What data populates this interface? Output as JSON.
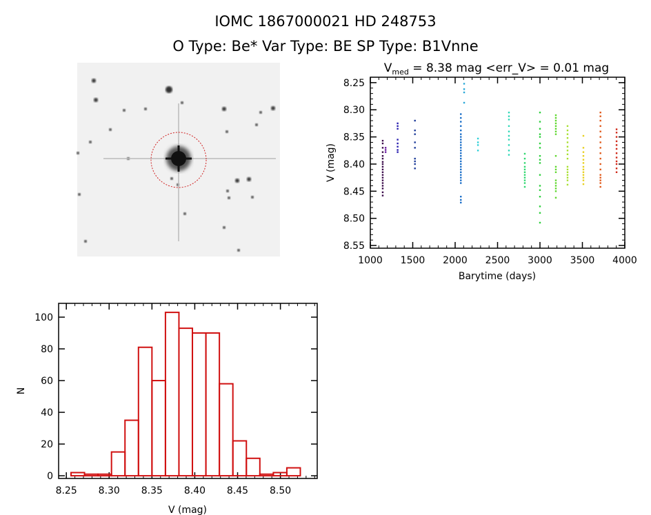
{
  "title": {
    "line1": "IOMC 1867000021    HD 248753",
    "line2": "O Type: Be*   Var Type: BE   SP Type: B1Vnne"
  },
  "image_panel": {
    "content": "star-field-cutout",
    "marker": "red dashed circle around target"
  },
  "chart_data": [
    {
      "type": "scatter",
      "title_prefix": "V",
      "title_sub": "med",
      "title_rest": " = 8.38 mag <err_V> = 0.01 mag",
      "xlabel": "Barytime (days)",
      "ylabel": "V (mag)",
      "xlim": [
        1000,
        4000
      ],
      "ylim": [
        8.555,
        8.24
      ],
      "y_inverted": true,
      "xticks": [
        1000,
        1500,
        2000,
        2500,
        3000,
        3500,
        4000
      ],
      "yticks": [
        "8.25",
        "8.30",
        "8.35",
        "8.40",
        "8.45",
        "8.50",
        "8.55"
      ],
      "grid": false,
      "clusters": [
        {
          "x": 1146,
          "color": "#3a0a4a",
          "y": [
            8.357,
            8.362,
            8.37,
            8.378,
            8.385,
            8.39,
            8.396,
            8.4,
            8.405,
            8.41,
            8.415,
            8.42,
            8.425,
            8.43,
            8.435,
            8.44,
            8.445,
            8.452,
            8.458
          ]
        },
        {
          "x": 1180,
          "color": "#6a1aa0",
          "y": [
            8.37,
            8.374,
            8.378
          ]
        },
        {
          "x": 1322,
          "color": "#2a20b0",
          "y": [
            8.325,
            8.33,
            8.335,
            8.355,
            8.362,
            8.368,
            8.374,
            8.378
          ]
        },
        {
          "x": 1526,
          "color": "#1c3a98",
          "y": [
            8.32,
            8.338,
            8.345,
            8.36,
            8.37,
            8.39,
            8.395,
            8.4,
            8.408
          ]
        },
        {
          "x": 2067,
          "color": "#1a6ec8",
          "y": [
            8.308,
            8.315,
            8.322,
            8.33,
            8.338,
            8.345,
            8.35,
            8.355,
            8.36,
            8.365,
            8.37,
            8.375,
            8.38,
            8.385,
            8.39,
            8.395,
            8.4,
            8.405,
            8.41,
            8.415,
            8.42,
            8.425,
            8.43,
            8.435,
            8.46,
            8.466,
            8.471
          ]
        },
        {
          "x": 2106,
          "color": "#2aa8d8",
          "y": [
            8.252,
            8.262,
            8.268,
            8.287
          ]
        },
        {
          "x": 2269,
          "color": "#30d0d8",
          "y": [
            8.353,
            8.36,
            8.365,
            8.375
          ]
        },
        {
          "x": 2634,
          "color": "#30d8b8",
          "y": [
            8.305,
            8.312,
            8.318,
            8.33,
            8.34,
            8.348,
            8.355,
            8.365,
            8.375,
            8.383
          ]
        },
        {
          "x": 2821,
          "color": "#30d870",
          "y": [
            8.381,
            8.39,
            8.398,
            8.405,
            8.41,
            8.415,
            8.42,
            8.425,
            8.43,
            8.435,
            8.442
          ]
        },
        {
          "x": 3000,
          "color": "#30d040",
          "y": [
            8.305,
            8.322,
            8.335,
            8.345,
            8.35,
            8.362,
            8.37,
            8.385,
            8.392,
            8.398,
            8.42,
            8.44,
            8.448,
            8.46,
            8.478,
            8.49,
            8.508
          ]
        },
        {
          "x": 3187,
          "color": "#60d830",
          "y": [
            8.31,
            8.315,
            8.32,
            8.325,
            8.33,
            8.335,
            8.34,
            8.345,
            8.385,
            8.405,
            8.41,
            8.415,
            8.43,
            8.435,
            8.44,
            8.445,
            8.45,
            8.462
          ]
        },
        {
          "x": 3325,
          "color": "#a8e030",
          "y": [
            8.33,
            8.338,
            8.345,
            8.352,
            8.36,
            8.368,
            8.375,
            8.382,
            8.39,
            8.405,
            8.41,
            8.415,
            8.42,
            8.425,
            8.43,
            8.438
          ]
        },
        {
          "x": 3512,
          "color": "#e8d020",
          "y": [
            8.348,
            8.37,
            8.378,
            8.385,
            8.392,
            8.398,
            8.405,
            8.41,
            8.415,
            8.42,
            8.425,
            8.43,
            8.437
          ]
        },
        {
          "x": 3713,
          "color": "#e05818",
          "y": [
            8.305,
            8.312,
            8.32,
            8.33,
            8.34,
            8.35,
            8.36,
            8.37,
            8.38,
            8.39,
            8.4,
            8.41,
            8.42,
            8.425,
            8.43,
            8.435,
            8.442
          ]
        },
        {
          "x": 3903,
          "color": "#d02818",
          "y": [
            8.336,
            8.342,
            8.35,
            8.358,
            8.365,
            8.372,
            8.38,
            8.388,
            8.395,
            8.4,
            8.408,
            8.415
          ]
        }
      ]
    },
    {
      "type": "bar",
      "subtype": "histogram",
      "xlabel": "V (mag)",
      "ylabel": "N",
      "xlim": [
        8.241,
        8.543
      ],
      "ylim": [
        -1.7,
        108.7
      ],
      "xticks": [
        "8.25",
        "8.30",
        "8.35",
        "8.40",
        "8.45",
        "8.50"
      ],
      "yticks": [
        "0",
        "20",
        "40",
        "60",
        "80",
        "100"
      ],
      "bin_start": 8.2555,
      "bin_width": 0.01575,
      "counts": [
        2,
        1,
        1,
        15,
        35,
        81,
        60,
        103,
        93,
        90,
        90,
        58,
        22,
        11,
        1,
        2,
        5
      ],
      "color": "#d01010",
      "grid": false
    }
  ]
}
